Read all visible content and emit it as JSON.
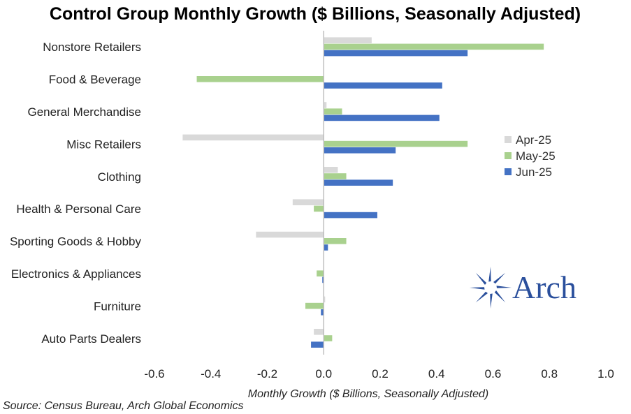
{
  "chart_data": {
    "type": "bar",
    "orientation": "horizontal",
    "title": "Control Group Monthly Growth ($ Billions, Seasonally Adjusted)",
    "xlabel": "Monthly Growth ($ Billions, Seasonally Adjusted)",
    "ylabel": "",
    "xlim": [
      -0.6,
      1.0
    ],
    "xticks": [
      "-0.6",
      "-0.4",
      "-0.2",
      "0.0",
      "0.2",
      "0.4",
      "0.6",
      "0.8",
      "1.0"
    ],
    "grid": false,
    "legend_position": "right",
    "categories": [
      "Nonstore Retailers",
      "Food & Beverage",
      "General Merchandise",
      "Misc Retailers",
      "Clothing",
      "Health & Personal Care",
      "Sporting Goods & Hobby",
      "Electronics & Appliances",
      "Furniture",
      "Auto Parts Dealers"
    ],
    "series": [
      {
        "name": "Apr-25",
        "color": "#d9d9d9",
        "values": [
          0.17,
          0.0,
          0.01,
          -0.5,
          0.05,
          -0.11,
          -0.24,
          0.0,
          0.005,
          -0.035
        ]
      },
      {
        "name": "May-25",
        "color": "#a9d18e",
        "values": [
          0.78,
          -0.45,
          0.065,
          0.51,
          0.08,
          -0.035,
          0.08,
          -0.025,
          -0.065,
          0.03
        ]
      },
      {
        "name": "Jun-25",
        "color": "#4472c4",
        "values": [
          0.51,
          0.42,
          0.41,
          0.255,
          0.245,
          0.19,
          0.015,
          -0.005,
          -0.01,
          -0.045
        ]
      }
    ]
  },
  "source": "Source: Census Bureau, Arch Global Economics",
  "logo": {
    "text": "Arch",
    "color": "#2a4f9c"
  }
}
